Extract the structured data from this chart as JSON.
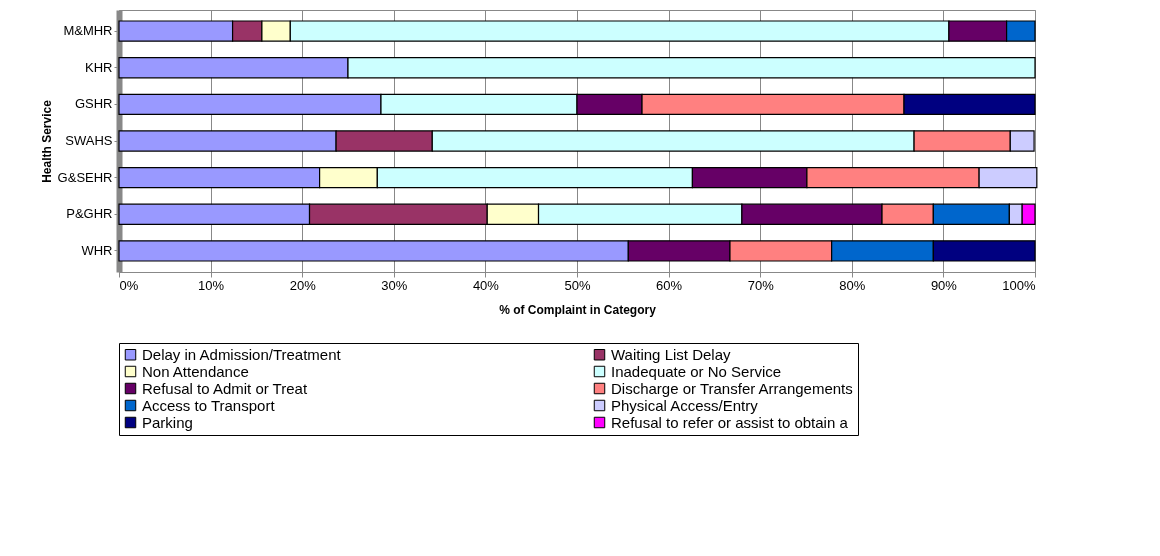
{
  "chart_data": {
    "type": "bar",
    "orientation": "horizontal",
    "stacked": true,
    "categories": [
      "M&MHR",
      "KHR",
      "GSHR",
      "SWAHS",
      "G&SEHR",
      "P&GHR",
      "WHR"
    ],
    "xlabel": "% of Complaint in Category",
    "ylabel": "Health Service",
    "xlim": [
      0,
      100
    ],
    "xticks": [
      {
        "value": 0,
        "label": "0%"
      },
      {
        "value": 10,
        "label": "10%"
      },
      {
        "value": 20,
        "label": "20%"
      },
      {
        "value": 30,
        "label": "30%"
      },
      {
        "value": 40,
        "label": "40%"
      },
      {
        "value": 50,
        "label": "50%"
      },
      {
        "value": 60,
        "label": "60%"
      },
      {
        "value": 70,
        "label": "70%"
      },
      {
        "value": 80,
        "label": "80%"
      },
      {
        "value": 90,
        "label": "90%"
      },
      {
        "value": 100,
        "label": "100%"
      }
    ],
    "grid": "x",
    "legend": "bottom",
    "series": [
      {
        "name": "Delay in Admission/Treatment",
        "color": "#9999ff",
        "values": [
          12.4,
          25.0,
          28.6,
          23.7,
          21.9,
          20.8,
          55.6
        ]
      },
      {
        "name": "Waiting List Delay",
        "color": "#993366",
        "values": [
          3.2,
          null,
          null,
          10.5,
          null,
          19.4,
          null
        ]
      },
      {
        "name": "Non Attendance",
        "color": "#ffffcc",
        "values": [
          3.1,
          null,
          null,
          null,
          6.3,
          5.6,
          null
        ]
      },
      {
        "name": "Inadequate or No Service",
        "color": "#ccffff",
        "values": [
          71.9,
          75.0,
          21.4,
          52.6,
          34.4,
          22.2,
          null
        ]
      },
      {
        "name": "Refusal to Admit or Treat",
        "color": "#660066",
        "values": [
          6.3,
          null,
          7.1,
          null,
          12.5,
          15.3,
          11.1
        ]
      },
      {
        "name": "Discharge or Transfer Arrangements",
        "color": "#ff8080",
        "values": [
          null,
          null,
          28.6,
          10.5,
          18.8,
          5.6,
          11.1
        ]
      },
      {
        "name": "Access to Transport",
        "color": "#0066cc",
        "values": [
          3.1,
          null,
          null,
          null,
          null,
          8.3,
          11.1
        ]
      },
      {
        "name": "Physical Access/Entry",
        "color": "#ccccff",
        "values": [
          null,
          null,
          null,
          2.6,
          6.3,
          1.4,
          null
        ]
      },
      {
        "name": "Parking",
        "color": "#000080",
        "values": [
          null,
          null,
          14.3,
          null,
          null,
          null,
          11.1
        ]
      },
      {
        "name": "Refusal to refer or assist to obtain a",
        "color": "#ff00ff",
        "values": [
          null,
          null,
          null,
          null,
          null,
          1.4,
          null
        ]
      }
    ]
  }
}
